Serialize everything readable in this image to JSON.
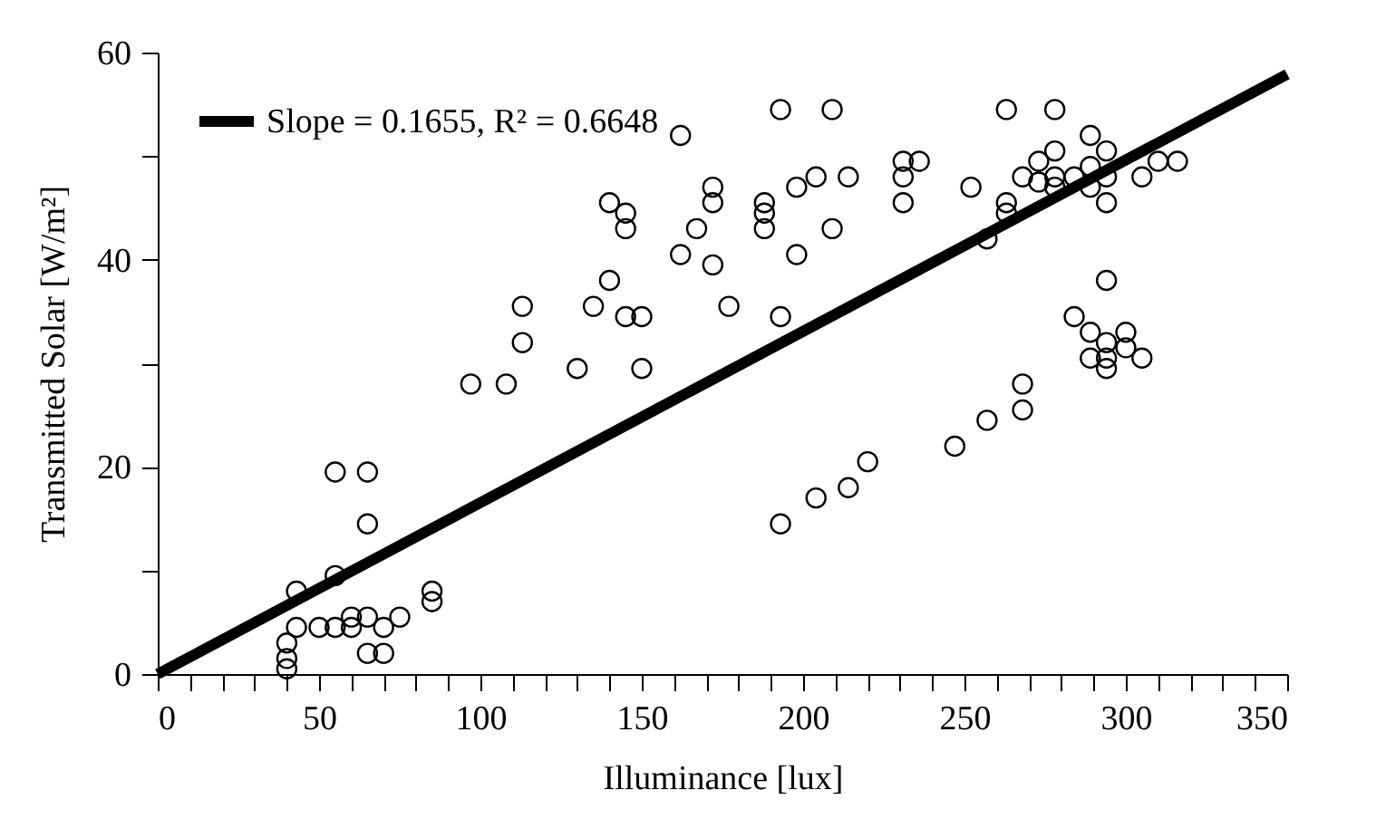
{
  "chart_data": {
    "type": "scatter",
    "xlabel": "Illuminance [lux]",
    "ylabel": "Transmitted Solar [W/m²]",
    "xlim": [
      0,
      350
    ],
    "ylim": [
      0,
      60
    ],
    "xticks": [
      0,
      {
        "value": 10,
        "label": null
      },
      {
        "value": 20,
        "label": null
      },
      {
        "value": 30,
        "label": null
      },
      {
        "value": 40,
        "label": null
      },
      50,
      {
        "value": 60,
        "label": null
      },
      {
        "value": 70,
        "label": null
      },
      {
        "value": 80,
        "label": null
      },
      {
        "value": 90,
        "label": null
      },
      100,
      {
        "value": 110,
        "label": null
      },
      {
        "value": 120,
        "label": null
      },
      {
        "value": 130,
        "label": null
      },
      {
        "value": 140,
        "label": null
      },
      150,
      {
        "value": 160,
        "label": null
      },
      {
        "value": 170,
        "label": null
      },
      {
        "value": 180,
        "label": null
      },
      {
        "value": 190,
        "label": null
      },
      200,
      {
        "value": 210,
        "label": null
      },
      {
        "value": 220,
        "label": null
      },
      {
        "value": 230,
        "label": null
      },
      {
        "value": 240,
        "label": null
      },
      250,
      {
        "value": 260,
        "label": null
      },
      {
        "value": 270,
        "label": null
      },
      {
        "value": 280,
        "label": null
      },
      {
        "value": 290,
        "label": null
      },
      300,
      {
        "value": 310,
        "label": null
      },
      {
        "value": 320,
        "label": null
      },
      {
        "value": 330,
        "label": null
      },
      {
        "value": 340,
        "label": null
      },
      350
    ],
    "yticks": [
      0,
      {
        "value": 10,
        "label": null
      },
      20,
      {
        "value": 30,
        "label": null
      },
      40,
      {
        "value": 50,
        "label": null
      },
      60
    ],
    "grid": false,
    "legend": "top left",
    "series": [
      {
        "marker": "circle",
        "color": "#000000",
        "x": [
          40,
          40,
          40,
          43,
          43,
          50,
          55,
          55,
          55,
          60,
          60,
          65,
          65,
          65,
          65,
          70,
          70,
          75,
          85,
          85,
          97,
          108,
          113,
          113,
          130,
          135,
          140,
          140,
          145,
          145,
          145,
          150,
          150,
          162,
          162,
          167,
          172,
          172,
          172,
          177,
          188,
          188,
          188,
          193,
          193,
          193,
          198,
          198,
          204,
          204,
          209,
          209,
          214,
          214,
          220,
          231,
          231,
          231,
          236,
          247,
          252,
          257,
          257,
          263,
          263,
          263,
          268,
          268,
          268,
          273,
          273,
          278,
          278,
          278,
          278,
          284,
          284,
          289,
          289,
          289,
          289,
          289,
          294,
          294,
          294,
          294,
          294,
          294,
          294,
          300,
          300,
          305,
          305,
          310,
          316
        ],
        "values": [
          3,
          1.5,
          0.5,
          4.5,
          8,
          4.5,
          19.5,
          9.5,
          4.5,
          4.5,
          5.5,
          19.5,
          14.5,
          5.5,
          2,
          4.5,
          2,
          5.5,
          8,
          7,
          28,
          28,
          35.5,
          32,
          29.5,
          35.5,
          45.5,
          38,
          44.5,
          43,
          34.5,
          34.5,
          29.5,
          52,
          40.5,
          43,
          47,
          45.5,
          39.5,
          35.5,
          45.5,
          44.5,
          43,
          54.5,
          34.5,
          14.5,
          47,
          40.5,
          48,
          17,
          54.5,
          43,
          48,
          18,
          20.5,
          49.5,
          48,
          45.5,
          49.5,
          22,
          47,
          42,
          24.5,
          54.5,
          45.5,
          44.5,
          48,
          28,
          25.5,
          49.5,
          47.5,
          54.5,
          50.5,
          48,
          47,
          48,
          34.5,
          52,
          49,
          47,
          33,
          30.5,
          50.5,
          48,
          45.5,
          38,
          32,
          30.5,
          29.5,
          33,
          31.5,
          48,
          30.5,
          49.5,
          49.5
        ]
      },
      {
        "type": "line",
        "name": "Slope = 0.1655, R² = 0.6648",
        "color": "#000000",
        "line_style": "solid",
        "x": [
          0,
          350
        ],
        "values": [
          0,
          57.9
        ]
      }
    ]
  }
}
